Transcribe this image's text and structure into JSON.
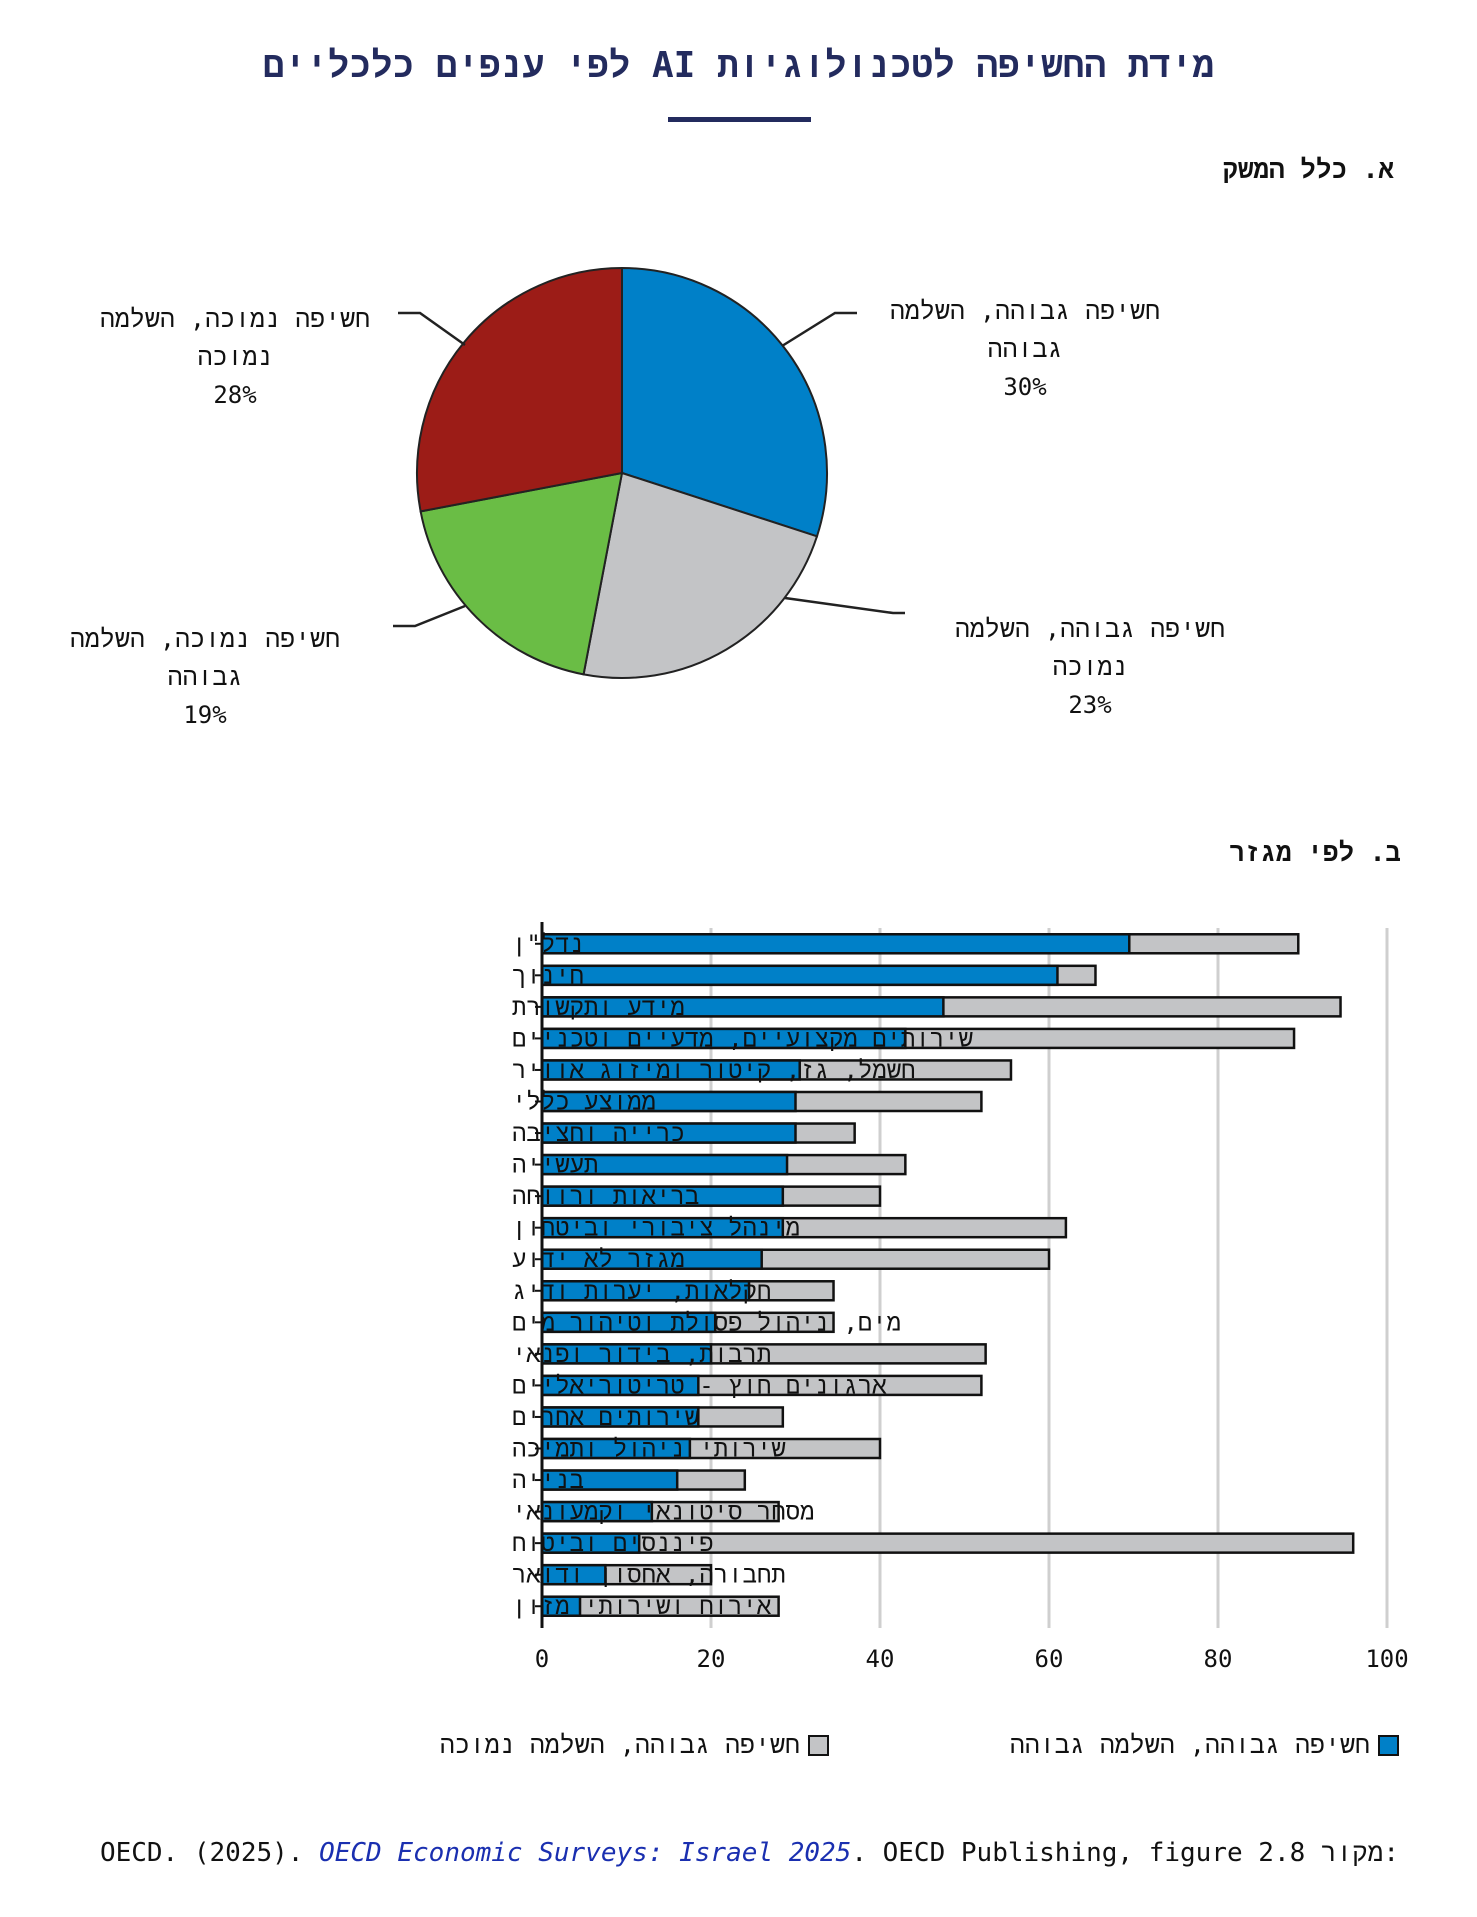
{
  "title": "מידת החשיפה לטכנולוגיות AI לפי ענפים כלכליים",
  "colors": {
    "high_high": "#0080c8",
    "high_low": "#c3c4c6",
    "low_high": "#6abd45",
    "low_low": "#9c1c17",
    "title": "#232b5e"
  },
  "chart_data": [
    {
      "type": "pie",
      "title": "א. כלל המשק",
      "slices": [
        {
          "label": "חשיפה גבוהה, השלמה גבוהה",
          "value": 30,
          "pct": "30%",
          "color": "#0080c8"
        },
        {
          "label": "חשיפה גבוהה, השלמה נמוכה",
          "value": 23,
          "pct": "23%",
          "color": "#c3c4c6"
        },
        {
          "label": "חשיפה נמוכה, השלמה גבוהה",
          "value": 19,
          "pct": "19%",
          "color": "#6abd45"
        },
        {
          "label": "חשיפה נמוכה, השלמה נמוכה",
          "value": 28,
          "pct": "28%",
          "color": "#9c1c17"
        }
      ]
    },
    {
      "type": "bar",
      "orientation": "horizontal",
      "stacked": false,
      "title": "ב. לפי מגזר",
      "categories": [
        "נדל\"ן",
        "חינוך",
        "מידע ותקשורת",
        "שירותים מקצועיים, מדעיים וטכניים",
        "חשמל, גז, קיטור ומיזוג אוויר",
        "ממוצע כללי",
        "כרייה וחציבה",
        "תעשייה",
        "בריאות ורווחה",
        "מינהל ציבורי וביטחון",
        "מגזר לא ידוע",
        "חקלאות, יערות ודיג",
        "מים, ניהול פסולת וטיהור מים",
        "תרבות, בידור ופנאי",
        "ארגונים חוץ - טריטוריאליים",
        "שירותים אחרים",
        "שירותי ניהול ותמיכה",
        "בנייה",
        "מסחר סיטונאי וקמעונאי",
        "פיננסים וביטוח",
        "תחבורה, אחסון ודואר",
        "אירוח ושירותי מזון"
      ],
      "series": [
        {
          "name": "חשיפה גבוהה, השלמה גבוהה",
          "color": "#0080c8",
          "values": [
            69.5,
            61,
            47.5,
            43,
            30.5,
            30,
            30,
            29,
            28.5,
            28.5,
            26,
            24.5,
            20.5,
            20,
            18.5,
            18.5,
            17.5,
            16,
            13,
            11.5,
            7.5,
            4.5
          ]
        },
        {
          "name": "חשיפה גבוהה, השלמה נמוכה",
          "color": "#c3c4c6",
          "values": [
            89.5,
            65.5,
            94.5,
            89,
            55.5,
            52,
            37,
            43,
            40,
            62,
            60,
            34.5,
            34.5,
            52.5,
            52,
            28.5,
            40,
            24,
            28,
            96,
            20,
            28
          ]
        }
      ],
      "x_ticks": [
        "0",
        "20",
        "40",
        "60",
        "80",
        "100"
      ],
      "xlim": [
        0,
        100
      ],
      "grid": true,
      "legend": "bottom"
    }
  ],
  "source": {
    "prefix": "מקור:",
    "plain1": "OECD. (2025). ",
    "italic": "OECD Economic Surveys: Israel 2025",
    "plain2": ". OECD Publishing, figure 2.8"
  }
}
